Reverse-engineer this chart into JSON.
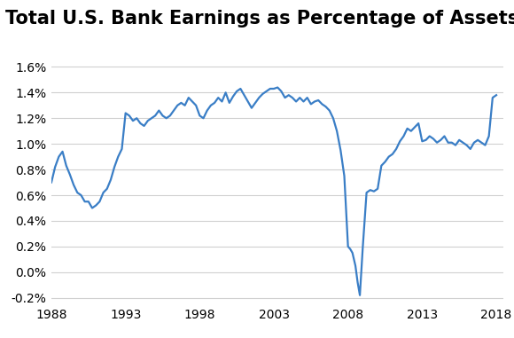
{
  "title": "Total U.S. Bank Earnings as Percentage of Assets",
  "line_color": "#3A7EC6",
  "background_color": "#ffffff",
  "grid_color": "#d0d0d0",
  "xlim": [
    1988,
    2018.5
  ],
  "ylim": [
    -0.0025,
    0.017
  ],
  "yticks": [
    -0.002,
    0.0,
    0.002,
    0.004,
    0.006,
    0.008,
    0.01,
    0.012,
    0.014,
    0.016
  ],
  "xticks": [
    1988,
    1993,
    1998,
    2003,
    2008,
    2013,
    2018
  ],
  "title_fontsize": 15,
  "tick_fontsize": 10,
  "line_width": 1.6,
  "data": [
    [
      1988.0,
      0.007
    ],
    [
      1988.25,
      0.0082
    ],
    [
      1988.5,
      0.009
    ],
    [
      1988.75,
      0.0094
    ],
    [
      1989.0,
      0.0083
    ],
    [
      1989.25,
      0.0076
    ],
    [
      1989.5,
      0.0068
    ],
    [
      1989.75,
      0.0062
    ],
    [
      1990.0,
      0.006
    ],
    [
      1990.25,
      0.0055
    ],
    [
      1990.5,
      0.0055
    ],
    [
      1990.75,
      0.005
    ],
    [
      1991.0,
      0.0052
    ],
    [
      1991.25,
      0.0055
    ],
    [
      1991.5,
      0.0062
    ],
    [
      1991.75,
      0.0065
    ],
    [
      1992.0,
      0.0072
    ],
    [
      1992.25,
      0.0082
    ],
    [
      1992.5,
      0.009
    ],
    [
      1992.75,
      0.0096
    ],
    [
      1993.0,
      0.0124
    ],
    [
      1993.25,
      0.0122
    ],
    [
      1993.5,
      0.0118
    ],
    [
      1993.75,
      0.012
    ],
    [
      1994.0,
      0.0116
    ],
    [
      1994.25,
      0.0114
    ],
    [
      1994.5,
      0.0118
    ],
    [
      1994.75,
      0.012
    ],
    [
      1995.0,
      0.0122
    ],
    [
      1995.25,
      0.0126
    ],
    [
      1995.5,
      0.0122
    ],
    [
      1995.75,
      0.012
    ],
    [
      1996.0,
      0.0122
    ],
    [
      1996.25,
      0.0126
    ],
    [
      1996.5,
      0.013
    ],
    [
      1996.75,
      0.0132
    ],
    [
      1997.0,
      0.013
    ],
    [
      1997.25,
      0.0136
    ],
    [
      1997.5,
      0.0133
    ],
    [
      1997.75,
      0.013
    ],
    [
      1998.0,
      0.0122
    ],
    [
      1998.25,
      0.012
    ],
    [
      1998.5,
      0.0126
    ],
    [
      1998.75,
      0.013
    ],
    [
      1999.0,
      0.0132
    ],
    [
      1999.25,
      0.0136
    ],
    [
      1999.5,
      0.0133
    ],
    [
      1999.75,
      0.014
    ],
    [
      2000.0,
      0.0132
    ],
    [
      2000.25,
      0.0137
    ],
    [
      2000.5,
      0.0141
    ],
    [
      2000.75,
      0.0143
    ],
    [
      2001.0,
      0.0138
    ],
    [
      2001.25,
      0.0133
    ],
    [
      2001.5,
      0.0128
    ],
    [
      2001.75,
      0.0132
    ],
    [
      2002.0,
      0.0136
    ],
    [
      2002.25,
      0.0139
    ],
    [
      2002.5,
      0.0141
    ],
    [
      2002.75,
      0.0143
    ],
    [
      2003.0,
      0.0143
    ],
    [
      2003.25,
      0.0144
    ],
    [
      2003.5,
      0.0141
    ],
    [
      2003.75,
      0.0136
    ],
    [
      2004.0,
      0.0138
    ],
    [
      2004.25,
      0.0136
    ],
    [
      2004.5,
      0.0133
    ],
    [
      2004.75,
      0.0136
    ],
    [
      2005.0,
      0.0133
    ],
    [
      2005.25,
      0.0136
    ],
    [
      2005.5,
      0.0131
    ],
    [
      2005.75,
      0.0133
    ],
    [
      2006.0,
      0.0134
    ],
    [
      2006.25,
      0.0131
    ],
    [
      2006.5,
      0.0129
    ],
    [
      2006.75,
      0.0126
    ],
    [
      2007.0,
      0.012
    ],
    [
      2007.25,
      0.011
    ],
    [
      2007.5,
      0.0095
    ],
    [
      2007.75,
      0.0075
    ],
    [
      2008.0,
      0.002
    ],
    [
      2008.15,
      0.0018
    ],
    [
      2008.3,
      0.0015
    ],
    [
      2008.5,
      0.0005
    ],
    [
      2008.65,
      -0.0008
    ],
    [
      2008.8,
      -0.0018
    ],
    [
      2009.0,
      0.002
    ],
    [
      2009.25,
      0.0062
    ],
    [
      2009.5,
      0.0064
    ],
    [
      2009.75,
      0.0063
    ],
    [
      2010.0,
      0.0065
    ],
    [
      2010.25,
      0.0083
    ],
    [
      2010.5,
      0.0086
    ],
    [
      2010.75,
      0.009
    ],
    [
      2011.0,
      0.0092
    ],
    [
      2011.25,
      0.0096
    ],
    [
      2011.5,
      0.0102
    ],
    [
      2011.75,
      0.0106
    ],
    [
      2012.0,
      0.0112
    ],
    [
      2012.25,
      0.011
    ],
    [
      2012.5,
      0.0113
    ],
    [
      2012.75,
      0.0116
    ],
    [
      2013.0,
      0.0102
    ],
    [
      2013.25,
      0.0103
    ],
    [
      2013.5,
      0.0106
    ],
    [
      2013.75,
      0.0104
    ],
    [
      2014.0,
      0.0101
    ],
    [
      2014.25,
      0.0103
    ],
    [
      2014.5,
      0.0106
    ],
    [
      2014.75,
      0.0101
    ],
    [
      2015.0,
      0.0101
    ],
    [
      2015.25,
      0.0099
    ],
    [
      2015.5,
      0.0103
    ],
    [
      2015.75,
      0.0101
    ],
    [
      2016.0,
      0.0099
    ],
    [
      2016.25,
      0.0096
    ],
    [
      2016.5,
      0.0101
    ],
    [
      2016.75,
      0.0103
    ],
    [
      2017.0,
      0.0101
    ],
    [
      2017.25,
      0.0099
    ],
    [
      2017.5,
      0.0106
    ],
    [
      2017.75,
      0.0136
    ],
    [
      2018.0,
      0.0138
    ]
  ]
}
